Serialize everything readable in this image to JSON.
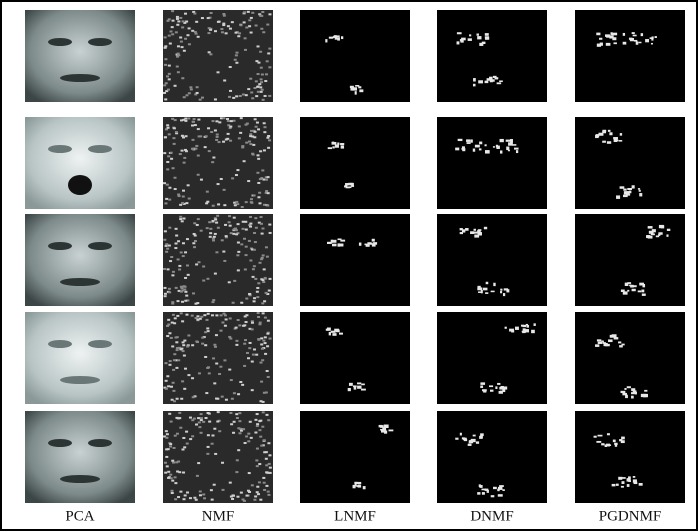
{
  "figure": {
    "column_labels": [
      "PCA",
      "NMF",
      "LNMF",
      "DNMF",
      "PGDNMF"
    ]
  }
}
